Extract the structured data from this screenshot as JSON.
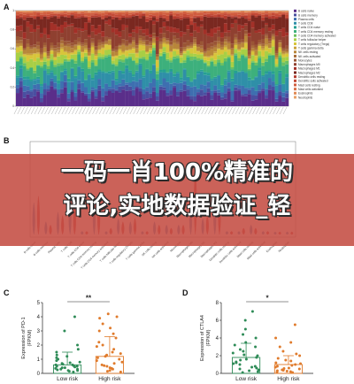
{
  "overlay": {
    "line1": "一码一肖100%精准的",
    "line2": "评论,实地数据验证_轻"
  },
  "panels": {
    "a": "A",
    "b": "B",
    "c": "C",
    "d": "D"
  },
  "colors": {
    "low_risk": "#2e8b57",
    "high_risk": "#e07b2c",
    "violin_low": "#3b7fc4",
    "violin_high": "#c0282d",
    "banner": "#c44c42"
  },
  "chart_data": [
    {
      "type": "bar",
      "panel": "A",
      "stacked": true,
      "ylim": [
        0,
        1
      ],
      "yticks": [
        "0",
        "0.2",
        "0.4",
        "0.6",
        "0.8",
        "1"
      ],
      "n_samples": 80,
      "legend_position": "right",
      "series": [
        {
          "name": "B cells naive",
          "color": "#5a2e8a",
          "share": 0.12
        },
        {
          "name": "B cells memory",
          "color": "#4a4fa0",
          "share": 0.04
        },
        {
          "name": "Plasma cells",
          "color": "#3e6fb0",
          "share": 0.06
        },
        {
          "name": "T cells CD8",
          "color": "#2f8fa8",
          "share": 0.1
        },
        {
          "name": "T cells CD4 naive",
          "color": "#26a092",
          "share": 0.02
        },
        {
          "name": "T cells CD4 memory resting",
          "color": "#3db07c",
          "share": 0.12
        },
        {
          "name": "T cells CD4 memory activated",
          "color": "#6cc060",
          "share": 0.02
        },
        {
          "name": "T cells follicular helper",
          "color": "#a8cf45",
          "share": 0.05
        },
        {
          "name": "T cells regulatory (Tregs)",
          "color": "#d8c53a",
          "share": 0.04
        },
        {
          "name": "T cells gamma delta",
          "color": "#c9a23a",
          "share": 0.01
        },
        {
          "name": "NK cells resting",
          "color": "#b8863a",
          "share": 0.04
        },
        {
          "name": "NK cells activated",
          "color": "#a86c3a",
          "share": 0.02
        },
        {
          "name": "Monocytes",
          "color": "#9a5535",
          "share": 0.03
        },
        {
          "name": "Macrophages M0",
          "color": "#8f4030",
          "share": 0.1
        },
        {
          "name": "Macrophages M1",
          "color": "#a33028",
          "share": 0.05
        },
        {
          "name": "Macrophages M2",
          "color": "#7a2820",
          "share": 0.1
        },
        {
          "name": "Dendritic cells resting",
          "color": "#b23a2e",
          "share": 0.02
        },
        {
          "name": "Dendritic cells activated",
          "color": "#c44a36",
          "share": 0.02
        },
        {
          "name": "Mast cells resting",
          "color": "#d05c3e",
          "share": 0.02
        },
        {
          "name": "Mast cells activated",
          "color": "#d87048",
          "share": 0.01
        },
        {
          "name": "Eosinophils",
          "color": "#e08a55",
          "share": 0.005
        },
        {
          "name": "Neutrophils",
          "color": "#e8a065",
          "share": 0.005
        }
      ]
    },
    {
      "type": "violin",
      "panel": "B",
      "groups": [
        "Low risk",
        "High risk"
      ],
      "categories": [
        "B cells naive",
        "B cells memory",
        "Plasma cells",
        "T cells CD8",
        "T cells CD4 naive",
        "T cells CD4 memory resting",
        "T cells CD4 memory activated",
        "T cells follicular helper",
        "T cells regulatory (Tregs)",
        "T cells gamma delta",
        "NK cells resting",
        "NK cells activated",
        "Monocytes",
        "Macrophages M0",
        "Macrophages M1",
        "Macrophages M2",
        "Dendritic cells resting",
        "Dendritic cells activated",
        "Mast cells resting",
        "Mast cells activated",
        "Eosinophils",
        "Neutrophils"
      ],
      "low_values": [
        0.1,
        0.04,
        0.07,
        0.11,
        0.01,
        0.12,
        0.01,
        0.05,
        0.04,
        0.01,
        0.04,
        0.03,
        0.03,
        0.1,
        0.05,
        0.11,
        0.01,
        0.01,
        0.03,
        0.01,
        0.0,
        0.0
      ],
      "high_values": [
        0.12,
        0.03,
        0.06,
        0.09,
        0.01,
        0.11,
        0.02,
        0.04,
        0.05,
        0.01,
        0.03,
        0.02,
        0.03,
        0.22,
        0.06,
        0.13,
        0.01,
        0.02,
        0.02,
        0.01,
        0.0,
        0.0
      ],
      "ylim": [
        0,
        0.3
      ]
    },
    {
      "type": "scatter",
      "panel": "C",
      "ylabel": "Expression of PD-1\n(FPKM)",
      "categories": [
        "Low risk",
        "High risk"
      ],
      "ylim": [
        0,
        5
      ],
      "yticks": [
        0,
        1,
        2,
        3,
        4,
        5
      ],
      "significance": "**",
      "bar_means": [
        0.6,
        1.2
      ],
      "sd_upper": [
        1.5,
        2.6
      ],
      "low_points": [
        0.1,
        0.15,
        0.2,
        0.2,
        0.25,
        0.3,
        0.3,
        0.35,
        0.4,
        0.4,
        0.45,
        0.5,
        0.5,
        0.55,
        0.6,
        0.6,
        0.65,
        0.7,
        0.75,
        0.8,
        0.9,
        1.0,
        1.1,
        1.2,
        1.3,
        1.5,
        1.7,
        2.0,
        3.0,
        4.0
      ],
      "high_points": [
        0.1,
        0.15,
        0.2,
        0.3,
        0.35,
        0.4,
        0.5,
        0.55,
        0.6,
        0.7,
        0.8,
        0.9,
        1.0,
        1.1,
        1.2,
        1.3,
        1.4,
        1.5,
        1.7,
        1.9,
        2.0,
        2.2,
        2.5,
        2.8,
        3.0,
        3.2,
        3.5,
        3.9,
        4.0,
        4.2
      ]
    },
    {
      "type": "scatter",
      "panel": "D",
      "ylabel": "Expression of CTLA4\n(FPKM)",
      "categories": [
        "Low risk",
        "High risk"
      ],
      "ylim": [
        0,
        8
      ],
      "yticks": [
        0,
        2,
        4,
        6,
        8
      ],
      "significance": "*",
      "bar_means": [
        1.8,
        1.0
      ],
      "sd_upper": [
        3.4,
        2.0
      ],
      "low_points": [
        0.1,
        0.2,
        0.3,
        0.4,
        0.5,
        0.6,
        0.7,
        0.8,
        1.0,
        1.1,
        1.2,
        1.3,
        1.5,
        1.6,
        1.8,
        2.0,
        2.1,
        2.3,
        2.5,
        2.7,
        3.0,
        3.2,
        3.5,
        4.0,
        4.4,
        5.0,
        6.0,
        7.0
      ],
      "high_points": [
        0.1,
        0.15,
        0.2,
        0.25,
        0.3,
        0.35,
        0.4,
        0.5,
        0.55,
        0.6,
        0.7,
        0.8,
        0.9,
        1.0,
        1.1,
        1.2,
        1.4,
        1.5,
        1.7,
        2.0,
        2.2,
        2.5,
        3.0,
        3.5,
        4.0,
        5.5
      ]
    }
  ]
}
